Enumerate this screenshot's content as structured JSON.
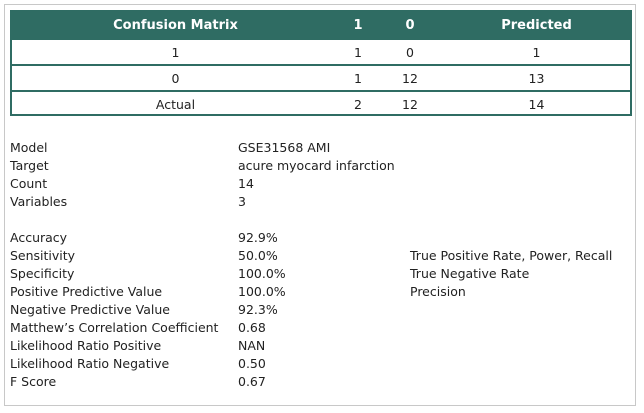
{
  "confusion_matrix": {
    "headers": [
      "Confusion Matrix",
      "1",
      "0",
      "Predicted"
    ],
    "rows": [
      [
        "1",
        "1",
        "0",
        "1"
      ],
      [
        "0",
        "1",
        "12",
        "13"
      ],
      [
        "Actual",
        "2",
        "12",
        "14"
      ]
    ]
  },
  "info": [
    {
      "label": "Model",
      "value": "GSE31568 AMI"
    },
    {
      "label": "Target",
      "value": "acure myocard infarction"
    },
    {
      "label": "Count",
      "value": "14"
    },
    {
      "label": "Variables",
      "value": "3"
    }
  ],
  "metrics": [
    {
      "label": "Accuracy",
      "value": "92.9%",
      "desc": ""
    },
    {
      "label": "Sensitivity",
      "value": "50.0%",
      "desc": "True Positive Rate, Power, Recall"
    },
    {
      "label": "Specificity",
      "value": "100.0%",
      "desc": "True Negative Rate"
    },
    {
      "label": "Positive Predictive Value",
      "value": "100.0%",
      "desc": "Precision"
    },
    {
      "label": "Negative Predictive Value",
      "value": "92.3%",
      "desc": ""
    },
    {
      "label": "Matthew’s Correlation Coefficient",
      "value": "0.68",
      "desc": ""
    },
    {
      "label": "Likelihood Ratio Positive",
      "value": "NAN",
      "desc": ""
    },
    {
      "label": "Likelihood Ratio Negative",
      "value": "0.50",
      "desc": ""
    },
    {
      "label": "F Score",
      "value": "0.67",
      "desc": ""
    }
  ],
  "colors": {
    "header_bg": "#2f6c63",
    "header_text": "#ffffff",
    "border": "#c8c8c8"
  }
}
